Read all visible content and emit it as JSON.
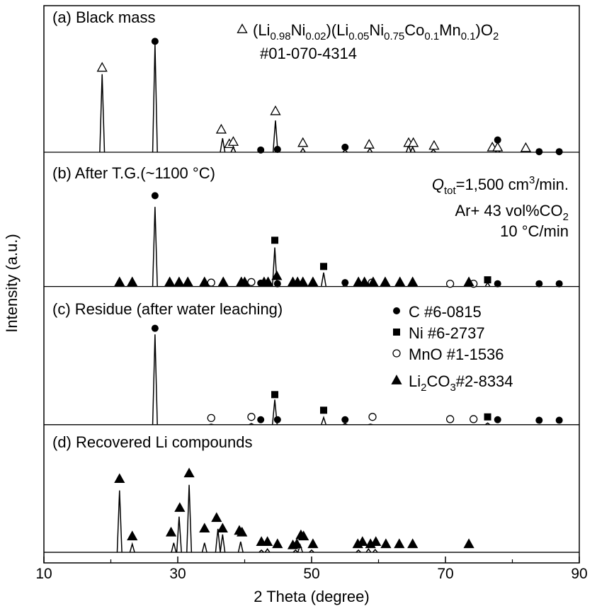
{
  "chart_data": {
    "type": "line",
    "x_label": "2 Theta (degree)",
    "y_label": "Intensity (a.u.)",
    "xlim": [
      10,
      90
    ],
    "xticks": [
      10,
      30,
      50,
      70,
      90
    ],
    "xminorticks": [
      20,
      40,
      60,
      80
    ],
    "ylim": [
      0,
      100
    ],
    "color": "#000000",
    "series": [
      {
        "name": "(a) Black mass",
        "baseline": 73.7,
        "x": [
          18.7,
          26.6,
          36.7,
          38.3,
          44.6,
          48.7,
          55,
          58.7,
          64.5,
          65.1,
          68.2,
          77.8
        ],
        "values": [
          87.7,
          93.1,
          76.2,
          74.6,
          79.4,
          74.4,
          74.1,
          74.4,
          74.9,
          74.6,
          74.2,
          74.1
        ],
        "markers": [
          {
            "symbol": "triangle-open",
            "x": [
              18.7,
              36.5,
              37.7,
              38.3,
              44.6,
              48.7,
              58.6,
              64.5,
              65.2,
              68.3,
              77,
              77.8,
              82
            ],
            "values": [
              88.9,
              77.8,
              75.2,
              75.6,
              81.1,
              75.4,
              75.1,
              75.4,
              75.4,
              74.9,
              74.6,
              74.6,
              74.5
            ]
          },
          {
            "symbol": "circle",
            "x": [
              26.6,
              42.4,
              44.9,
              55,
              77.8,
              84,
              87
            ],
            "values": [
              93.6,
              74.1,
              74.2,
              74.6,
              75.9,
              73.8,
              73.8
            ]
          }
        ]
      },
      {
        "name": "(b) After T.G.(~1100 °C)",
        "baseline": 49.6,
        "x": [
          21.3,
          26.6,
          30.2,
          31.7,
          34,
          36.8,
          39.5,
          42.5,
          44.5,
          47.6,
          51.8,
          55,
          58.6,
          76.3
        ],
        "values": [
          50.0,
          63.9,
          50.0,
          50.1,
          50.1,
          50.3,
          50.2,
          50.3,
          56.6,
          50.1,
          52.1,
          50.1,
          50.2,
          50.3
        ],
        "markers": [
          {
            "symbol": "circle",
            "x": [
              26.6,
              42.4,
              44.9,
              55,
              77.8,
              84,
              87
            ],
            "values": [
              65.9,
              50.2,
              50.1,
              50.3,
              50.1,
              50.1,
              50.1
            ]
          },
          {
            "symbol": "square",
            "x": [
              44.5,
              51.8,
              76.3
            ],
            "values": [
              57.9,
              53.2,
              50.8
            ]
          },
          {
            "symbol": "circle-open",
            "x": [
              35,
              41,
              59,
              70.7,
              74.2
            ],
            "values": [
              50.3,
              50.4,
              50.3,
              50.1,
              50.1
            ]
          },
          {
            "symbol": "triangle",
            "x": [
              21.3,
              23.2,
              28.8,
              30.2,
              31.5,
              34,
              36.8,
              39.5,
              40,
              42.9,
              43.5,
              44.8,
              47.2,
              47.9,
              48.7,
              50.2,
              57,
              57.9,
              59.2,
              61,
              63.2,
              65.1,
              73.5
            ],
            "values": [
              50.4,
              50.4,
              50.4,
              50.4,
              50.4,
              50.4,
              50.4,
              50.4,
              50.4,
              50.4,
              50.4,
              51.5,
              50.4,
              50.4,
              50.4,
              50.4,
              50.4,
              50.4,
              50.4,
              50.4,
              50.4,
              50.4,
              50.4
            ]
          }
        ]
      },
      {
        "name": "(c) Residue (after water leaching)",
        "baseline": 24.8,
        "x": [
          26.6,
          35,
          41,
          44.5,
          51.8,
          55,
          58.8,
          76.3
        ],
        "values": [
          41.0,
          24.9,
          25.0,
          29.3,
          26.1,
          25.0,
          24.9,
          25.1
        ],
        "markers": [
          {
            "symbol": "circle",
            "x": [
              26.6,
              42.4,
              44.9,
              55,
              77.8,
              84,
              87
            ],
            "values": [
              42.1,
              25.7,
              25.7,
              25.7,
              25.7,
              25.6,
              25.6
            ]
          },
          {
            "symbol": "square",
            "x": [
              44.5,
              51.8,
              76.3
            ],
            "values": [
              30.2,
              27.4,
              26.2
            ]
          },
          {
            "symbol": "circle-open",
            "x": [
              35,
              41,
              59.1,
              70.7,
              74.2
            ],
            "values": [
              26.0,
              26.2,
              26.2,
              25.8,
              25.8
            ]
          }
        ]
      },
      {
        "name": "(d) Recovered Li compounds",
        "baseline": 1.9,
        "x": [
          21.3,
          23.2,
          29.4,
          30.2,
          31.7,
          34,
          36,
          36.7,
          39.4,
          42.5,
          43.4,
          47.6,
          48.3,
          50,
          57,
          58.5,
          59.5
        ],
        "values": [
          13.0,
          3.4,
          3.6,
          8.3,
          14.0,
          3.6,
          6.1,
          5.1,
          3.8,
          2.3,
          2.5,
          2.3,
          3.2,
          2.3,
          2.3,
          2.5,
          2.4
        ],
        "markers": [
          {
            "symbol": "triangle",
            "x": [
              21.3,
              23.2,
              29,
              30.3,
              31.7,
              34,
              35.8,
              36.7,
              39.2,
              39.6,
              42.5,
              43.4,
              44.9,
              47.2,
              47.8,
              48.4,
              48.8,
              50.2,
              56.9,
              57.6,
              58.8,
              59.6,
              61.1,
              63.1,
              65.1,
              73.5
            ],
            "values": [
              15.1,
              4.8,
              5.5,
              9.9,
              16.1,
              6.2,
              8.1,
              6.2,
              5.8,
              5.5,
              3.8,
              3.8,
              3.4,
              3.2,
              3.4,
              5.0,
              4.8,
              3.4,
              3.4,
              3.8,
              3.4,
              3.8,
              3.4,
              3.4,
              3.4,
              3.4
            ]
          }
        ]
      }
    ],
    "phases": [
      {
        "symbol": "triangle-open",
        "label": [
          {
            "text": "(Li"
          },
          {
            "text": "0.98",
            "style": "sub"
          },
          {
            "text": "Ni"
          },
          {
            "text": "0.02",
            "style": "sub"
          },
          {
            "text": ")(Li"
          },
          {
            "text": "0.05",
            "style": "sub"
          },
          {
            "text": "Ni"
          },
          {
            "text": "0.75",
            "style": "sub"
          },
          {
            "text": "Co"
          },
          {
            "text": "0.1",
            "style": "sub"
          },
          {
            "text": "Mn"
          },
          {
            "text": "0.1",
            "style": "sub"
          },
          {
            "text": ")O"
          },
          {
            "text": "2",
            "style": "sub"
          }
        ]
      },
      {
        "symbol": "circle",
        "label": [
          {
            "text": "C #6-0815"
          }
        ]
      },
      {
        "symbol": "square",
        "label": [
          {
            "text": "Ni #6-2737"
          }
        ]
      },
      {
        "symbol": "circle-open",
        "label": [
          {
            "text": "MnO #1-1536"
          }
        ]
      },
      {
        "symbol": "triangle",
        "label": [
          {
            "text": "Li"
          },
          {
            "text": "2",
            "style": "sub"
          },
          {
            "text": "CO"
          },
          {
            "text": "3",
            "style": "sub"
          },
          {
            "text": "#2-8334"
          }
        ]
      }
    ],
    "annotations": [
      {
        "label": [
          {
            "text": "#01-070-4314"
          }
        ]
      },
      {
        "label": [
          {
            "text": "Q",
            "style": "italic"
          },
          {
            "text": "tot",
            "style": "sub"
          },
          {
            "text": "=1,500 cm"
          },
          {
            "text": "3",
            "style": "sup"
          },
          {
            "text": "/min."
          }
        ]
      },
      {
        "label": [
          {
            "text": "Ar+ 43 vol%CO"
          },
          {
            "text": "2",
            "style": "sub"
          }
        ]
      },
      {
        "label": [
          {
            "text": "10 °C/min"
          }
        ]
      }
    ]
  }
}
